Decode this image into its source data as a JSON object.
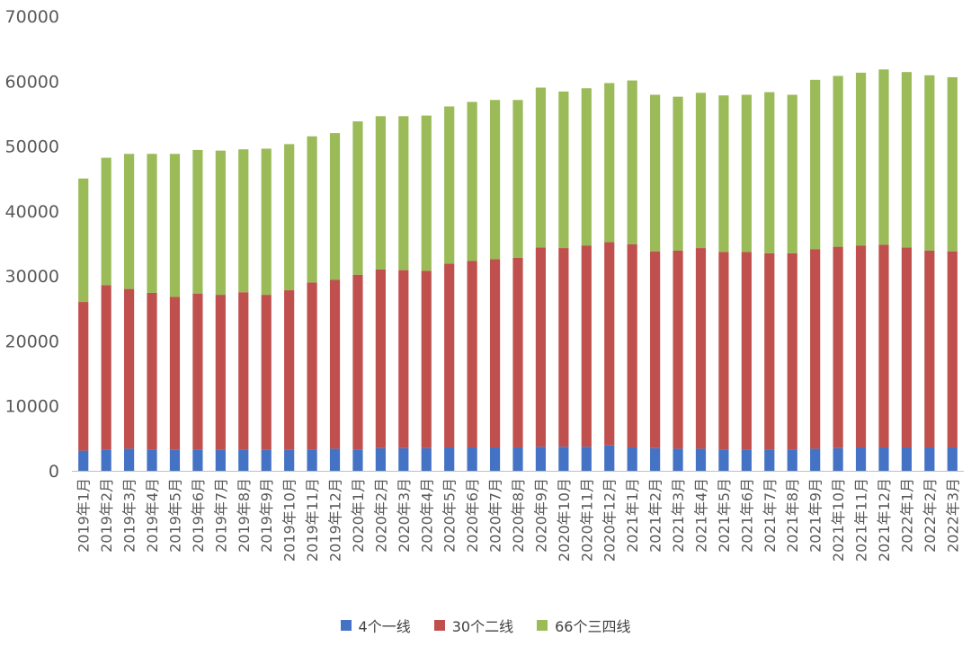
{
  "chart_data": {
    "type": "bar",
    "stacked": true,
    "categories": [
      "2019年1月",
      "2019年2月",
      "2019年3月",
      "2019年4月",
      "2019年5月",
      "2019年6月",
      "2019年7月",
      "2019年8月",
      "2019年9月",
      "2019年10月",
      "2019年11月",
      "2019年12月",
      "2020年1月",
      "2020年2月",
      "2020年3月",
      "2020年4月",
      "2020年5月",
      "2020年6月",
      "2020年7月",
      "2020年8月",
      "2020年9月",
      "2020年10月",
      "2020年11月",
      "2020年12月",
      "2021年1月",
      "2021年2月",
      "2021年3月",
      "2021年4月",
      "2021年5月",
      "2021年6月",
      "2021年7月",
      "2021年8月",
      "2021年9月",
      "2021年10月",
      "2021年11月",
      "2021年12月",
      "2022年1月",
      "2022年2月",
      "2022年3月"
    ],
    "series": [
      {
        "name": "4个一线",
        "color": "#4472C4",
        "values": [
          3100,
          3300,
          3400,
          3300,
          3200,
          3300,
          3200,
          3300,
          3200,
          3200,
          3300,
          3400,
          3300,
          3500,
          3500,
          3500,
          3600,
          3600,
          3600,
          3600,
          3700,
          3700,
          3700,
          3900,
          3600,
          3500,
          3400,
          3400,
          3300,
          3300,
          3300,
          3300,
          3400,
          3500,
          3600,
          3600,
          3600,
          3600,
          3600
        ]
      },
      {
        "name": "30个二线",
        "color": "#C0504D",
        "values": [
          22900,
          25300,
          24600,
          24100,
          23600,
          24000,
          23900,
          24200,
          23900,
          24600,
          25700,
          26000,
          26900,
          27500,
          27400,
          27300,
          28300,
          28700,
          29000,
          29200,
          30700,
          30600,
          31000,
          31300,
          31300,
          30300,
          30500,
          30900,
          30400,
          30400,
          30200,
          30200,
          30700,
          31000,
          31100,
          31200,
          30800,
          30300,
          30200
        ]
      },
      {
        "name": "66个三四线",
        "color": "#9BBB59",
        "values": [
          19000,
          19600,
          20800,
          21400,
          22000,
          22100,
          22200,
          22000,
          22500,
          22500,
          22500,
          22600,
          23600,
          23600,
          23700,
          23900,
          24200,
          24500,
          24500,
          24300,
          24600,
          24100,
          24200,
          24500,
          25200,
          24100,
          23700,
          23900,
          24100,
          24200,
          24800,
          24400,
          26100,
          26300,
          26600,
          27000,
          27000,
          27000,
          26800
        ]
      }
    ],
    "ylim": [
      0,
      70000
    ],
    "yticks": [
      0,
      10000,
      20000,
      30000,
      40000,
      50000,
      60000,
      70000
    ],
    "grid": false,
    "legend_position": "bottom"
  }
}
